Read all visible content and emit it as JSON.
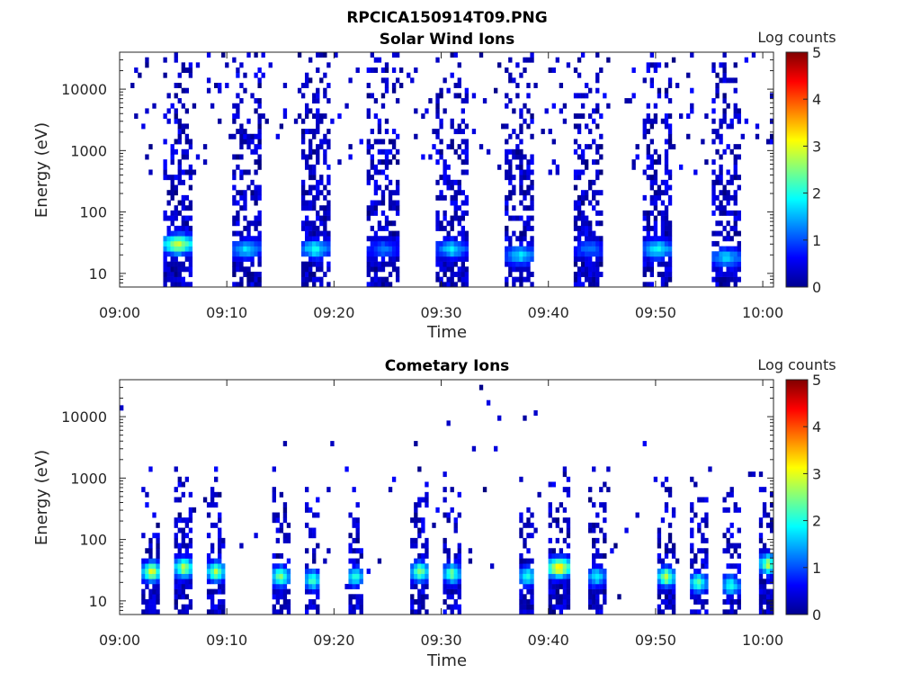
{
  "figure_title": "RPCICA150914T09.PNG",
  "chart_data": [
    {
      "type": "heatmap",
      "title": "Solar Wind Ions",
      "xlabel": "Time",
      "ylabel": "Energy (eV)",
      "x_ticks": [
        "09:00",
        "09:10",
        "09:20",
        "09:30",
        "09:40",
        "09:50",
        "10:00"
      ],
      "xlim": [
        "09:00",
        "10:01"
      ],
      "y_scale": "log",
      "y_ticks": [
        "10",
        "100",
        "1000",
        "10000"
      ],
      "ylim": [
        6,
        40000
      ],
      "colorbar": {
        "label": "Log counts",
        "ticks": [
          "0",
          "1",
          "2",
          "3",
          "4",
          "5"
        ],
        "range": [
          0,
          5
        ],
        "colormap": "jet"
      },
      "pattern": "periodic",
      "bursts": [
        {
          "center": "09:05.5",
          "width_min": 2.8,
          "peak_energy_eV": 30,
          "peak_log_counts": 3.0
        },
        {
          "center": "09:11.8",
          "width_min": 2.8,
          "peak_energy_eV": 25,
          "peak_log_counts": 1.8
        },
        {
          "center": "09:18.2",
          "width_min": 2.8,
          "peak_energy_eV": 25,
          "peak_log_counts": 2.0
        },
        {
          "center": "09:24.6",
          "width_min": 2.8,
          "peak_energy_eV": 25,
          "peak_log_counts": 1.3
        },
        {
          "center": "09:31.0",
          "width_min": 2.8,
          "peak_energy_eV": 25,
          "peak_log_counts": 1.8
        },
        {
          "center": "09:37.4",
          "width_min": 2.8,
          "peak_energy_eV": 20,
          "peak_log_counts": 1.8
        },
        {
          "center": "09:43.8",
          "width_min": 2.8,
          "peak_energy_eV": 25,
          "peak_log_counts": 1.3
        },
        {
          "center": "09:50.2",
          "width_min": 2.8,
          "peak_energy_eV": 25,
          "peak_log_counts": 2.0
        },
        {
          "center": "09:56.6",
          "width_min": 2.8,
          "peak_energy_eV": 18,
          "peak_log_counts": 1.8
        }
      ]
    },
    {
      "type": "heatmap",
      "title": "Cometary Ions",
      "xlabel": "Time",
      "ylabel": "Energy (eV)",
      "x_ticks": [
        "09:00",
        "09:10",
        "09:20",
        "09:30",
        "09:40",
        "09:50",
        "10:00"
      ],
      "xlim": [
        "09:00",
        "10:01"
      ],
      "y_scale": "log",
      "y_ticks": [
        "10",
        "100",
        "1000",
        "10000"
      ],
      "ylim": [
        6,
        40000
      ],
      "colorbar": {
        "label": "Log counts",
        "ticks": [
          "0",
          "1",
          "2",
          "3",
          "4",
          "5"
        ],
        "range": [
          0,
          5
        ],
        "colormap": "jet"
      },
      "pattern": "periodic",
      "bursts": [
        {
          "center": "09:03.0",
          "width_min": 1.6,
          "peak_energy_eV": 30,
          "peak_log_counts": 3.2
        },
        {
          "center": "09:06.0",
          "width_min": 1.6,
          "peak_energy_eV": 35,
          "peak_log_counts": 3.0
        },
        {
          "center": "09:09.0",
          "width_min": 1.6,
          "peak_energy_eV": 30,
          "peak_log_counts": 2.8
        },
        {
          "center": "09:15.0",
          "width_min": 1.6,
          "peak_energy_eV": 25,
          "peak_log_counts": 2.7
        },
        {
          "center": "09:18.0",
          "width_min": 1.6,
          "peak_energy_eV": 22,
          "peak_log_counts": 2.4
        },
        {
          "center": "09:22.0",
          "width_min": 1.6,
          "peak_energy_eV": 25,
          "peak_log_counts": 2.2
        },
        {
          "center": "09:28.0",
          "width_min": 1.6,
          "peak_energy_eV": 30,
          "peak_log_counts": 2.7
        },
        {
          "center": "09:31.0",
          "width_min": 1.6,
          "peak_energy_eV": 28,
          "peak_log_counts": 2.5
        },
        {
          "center": "09:38.0",
          "width_min": 1.6,
          "peak_energy_eV": 25,
          "peak_log_counts": 2.2
        },
        {
          "center": "09:41.0",
          "width_min": 2.2,
          "peak_energy_eV": 35,
          "peak_log_counts": 3.5
        },
        {
          "center": "09:44.5",
          "width_min": 1.6,
          "peak_energy_eV": 25,
          "peak_log_counts": 2.0
        },
        {
          "center": "09:51.0",
          "width_min": 1.6,
          "peak_energy_eV": 25,
          "peak_log_counts": 2.8
        },
        {
          "center": "09:54.0",
          "width_min": 1.6,
          "peak_energy_eV": 20,
          "peak_log_counts": 2.4
        },
        {
          "center": "09:57.0",
          "width_min": 1.6,
          "peak_energy_eV": 18,
          "peak_log_counts": 2.2
        },
        {
          "center": "10:00.5",
          "width_min": 1.6,
          "peak_energy_eV": 40,
          "peak_log_counts": 2.8
        }
      ]
    }
  ]
}
